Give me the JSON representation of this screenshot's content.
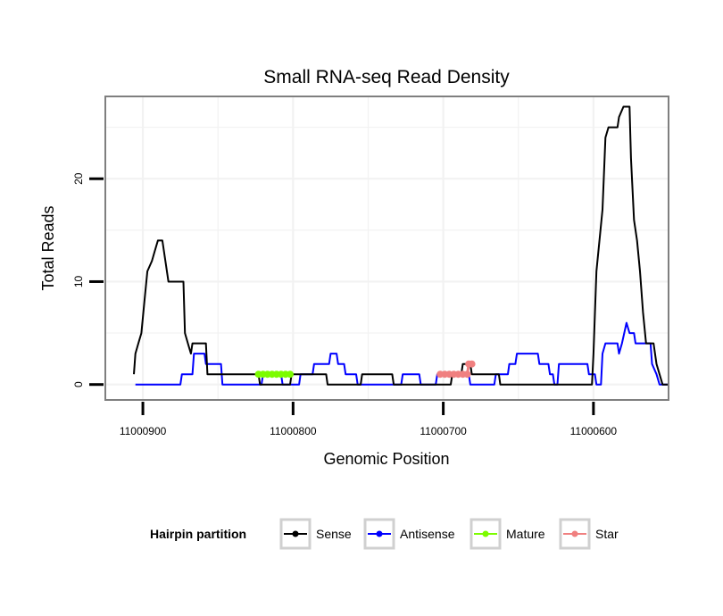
{
  "chart_data": {
    "type": "line",
    "title": "Small RNA-seq Read Density",
    "xlabel": "Genomic Position",
    "ylabel": "Total Reads",
    "x_reversed": true,
    "xlim": [
      11000550,
      11000925
    ],
    "ylim": [
      -1.5,
      28
    ],
    "x_ticks": [
      {
        "value": 11000900,
        "label": "11000900"
      },
      {
        "value": 11000800,
        "label": "11000800"
      },
      {
        "value": 11000700,
        "label": "11000700"
      },
      {
        "value": 11000600,
        "label": "11000600"
      }
    ],
    "y_ticks": [
      {
        "value": 0,
        "label": "0"
      },
      {
        "value": 10,
        "label": "10"
      },
      {
        "value": 20,
        "label": "20"
      }
    ],
    "legend": {
      "title": "Hairpin partition",
      "position": "bottom",
      "entries": [
        {
          "label": "Sense",
          "color": "#000000"
        },
        {
          "label": "Antisense",
          "color": "#0000ff"
        },
        {
          "label": "Mature",
          "color": "#7cfc00"
        },
        {
          "label": "Star",
          "color": "#f08080"
        }
      ]
    },
    "series": [
      {
        "name": "Sense",
        "color": "#000000",
        "points": [
          [
            11000906,
            1
          ],
          [
            11000905,
            3
          ],
          [
            11000903,
            4
          ],
          [
            11000901,
            5
          ],
          [
            11000899,
            8
          ],
          [
            11000897,
            11
          ],
          [
            11000894,
            12
          ],
          [
            11000892,
            13
          ],
          [
            11000890,
            14
          ],
          [
            11000887,
            14
          ],
          [
            11000885,
            12
          ],
          [
            11000883,
            10
          ],
          [
            11000873,
            10
          ],
          [
            11000872,
            5
          ],
          [
            11000870,
            4
          ],
          [
            11000868,
            3
          ],
          [
            11000867,
            4
          ],
          [
            11000858,
            4
          ],
          [
            11000857,
            1
          ],
          [
            11000823,
            1
          ],
          [
            11000822,
            0
          ],
          [
            11000802,
            0
          ],
          [
            11000801,
            1
          ],
          [
            11000778,
            1
          ],
          [
            11000777,
            0
          ],
          [
            11000755,
            0
          ],
          [
            11000754,
            1
          ],
          [
            11000734,
            1
          ],
          [
            11000733,
            0
          ],
          [
            11000695,
            0
          ],
          [
            11000694,
            1
          ],
          [
            11000688,
            1
          ],
          [
            11000687,
            2
          ],
          [
            11000682,
            2
          ],
          [
            11000681,
            1
          ],
          [
            11000663,
            1
          ],
          [
            11000662,
            0
          ],
          [
            11000601,
            0
          ],
          [
            11000600,
            3
          ],
          [
            11000598,
            11
          ],
          [
            11000596,
            14
          ],
          [
            11000594,
            17
          ],
          [
            11000592,
            24
          ],
          [
            11000590,
            25
          ],
          [
            11000584,
            25
          ],
          [
            11000583,
            26
          ],
          [
            11000580,
            27
          ],
          [
            11000576,
            27
          ],
          [
            11000575,
            22
          ],
          [
            11000573,
            16
          ],
          [
            11000571,
            14
          ],
          [
            11000569,
            11
          ],
          [
            11000567,
            7
          ],
          [
            11000565,
            4
          ],
          [
            11000560,
            4
          ],
          [
            11000558,
            2
          ],
          [
            11000556,
            1
          ],
          [
            11000554,
            0
          ],
          [
            11000550,
            0
          ]
        ]
      },
      {
        "name": "Antisense",
        "color": "#0000ff",
        "points": [
          [
            11000905,
            0
          ],
          [
            11000875,
            0
          ],
          [
            11000874,
            1
          ],
          [
            11000867,
            1
          ],
          [
            11000866,
            3
          ],
          [
            11000859,
            3
          ],
          [
            11000858,
            2
          ],
          [
            11000848,
            2
          ],
          [
            11000847,
            0
          ],
          [
            11000821,
            0
          ],
          [
            11000820,
            1
          ],
          [
            11000808,
            1
          ],
          [
            11000807,
            0
          ],
          [
            11000796,
            0
          ],
          [
            11000795,
            1
          ],
          [
            11000787,
            1
          ],
          [
            11000786,
            2
          ],
          [
            11000776,
            2
          ],
          [
            11000775,
            3
          ],
          [
            11000771,
            3
          ],
          [
            11000770,
            2
          ],
          [
            11000766,
            2
          ],
          [
            11000765,
            1
          ],
          [
            11000758,
            1
          ],
          [
            11000757,
            0
          ],
          [
            11000728,
            0
          ],
          [
            11000727,
            1
          ],
          [
            11000716,
            1
          ],
          [
            11000715,
            0
          ],
          [
            11000705,
            0
          ],
          [
            11000704,
            1
          ],
          [
            11000683,
            1
          ],
          [
            11000682,
            0
          ],
          [
            11000666,
            0
          ],
          [
            11000665,
            1
          ],
          [
            11000657,
            1
          ],
          [
            11000656,
            2
          ],
          [
            11000652,
            2
          ],
          [
            11000651,
            3
          ],
          [
            11000637,
            3
          ],
          [
            11000636,
            2
          ],
          [
            11000630,
            2
          ],
          [
            11000629,
            1
          ],
          [
            11000627,
            1
          ],
          [
            11000626,
            0
          ],
          [
            11000624,
            0
          ],
          [
            11000623,
            2
          ],
          [
            11000604,
            2
          ],
          [
            11000603,
            1
          ],
          [
            11000599,
            1
          ],
          [
            11000598,
            0
          ],
          [
            11000595,
            0
          ],
          [
            11000594,
            3
          ],
          [
            11000592,
            4
          ],
          [
            11000584,
            4
          ],
          [
            11000583,
            3
          ],
          [
            11000581,
            4
          ],
          [
            11000578,
            6
          ],
          [
            11000576,
            5
          ],
          [
            11000573,
            5
          ],
          [
            11000572,
            4
          ],
          [
            11000562,
            4
          ],
          [
            11000561,
            2
          ],
          [
            11000558,
            1
          ],
          [
            11000556,
            0
          ],
          [
            11000550,
            0
          ]
        ]
      },
      {
        "name": "Mature",
        "color": "#7cfc00",
        "points": [
          [
            11000823,
            1
          ],
          [
            11000820,
            1
          ],
          [
            11000817,
            1
          ],
          [
            11000814,
            1
          ],
          [
            11000811,
            1
          ],
          [
            11000808,
            1
          ],
          [
            11000805,
            1
          ],
          [
            11000802,
            1
          ]
        ]
      },
      {
        "name": "Star",
        "color": "#f08080",
        "points": [
          [
            11000702,
            1
          ],
          [
            11000699,
            1
          ],
          [
            11000696,
            1
          ],
          [
            11000693,
            1
          ],
          [
            11000690,
            1
          ],
          [
            11000687,
            1
          ],
          [
            11000684,
            1
          ],
          [
            11000683,
            2
          ],
          [
            11000681,
            2
          ]
        ]
      }
    ]
  }
}
